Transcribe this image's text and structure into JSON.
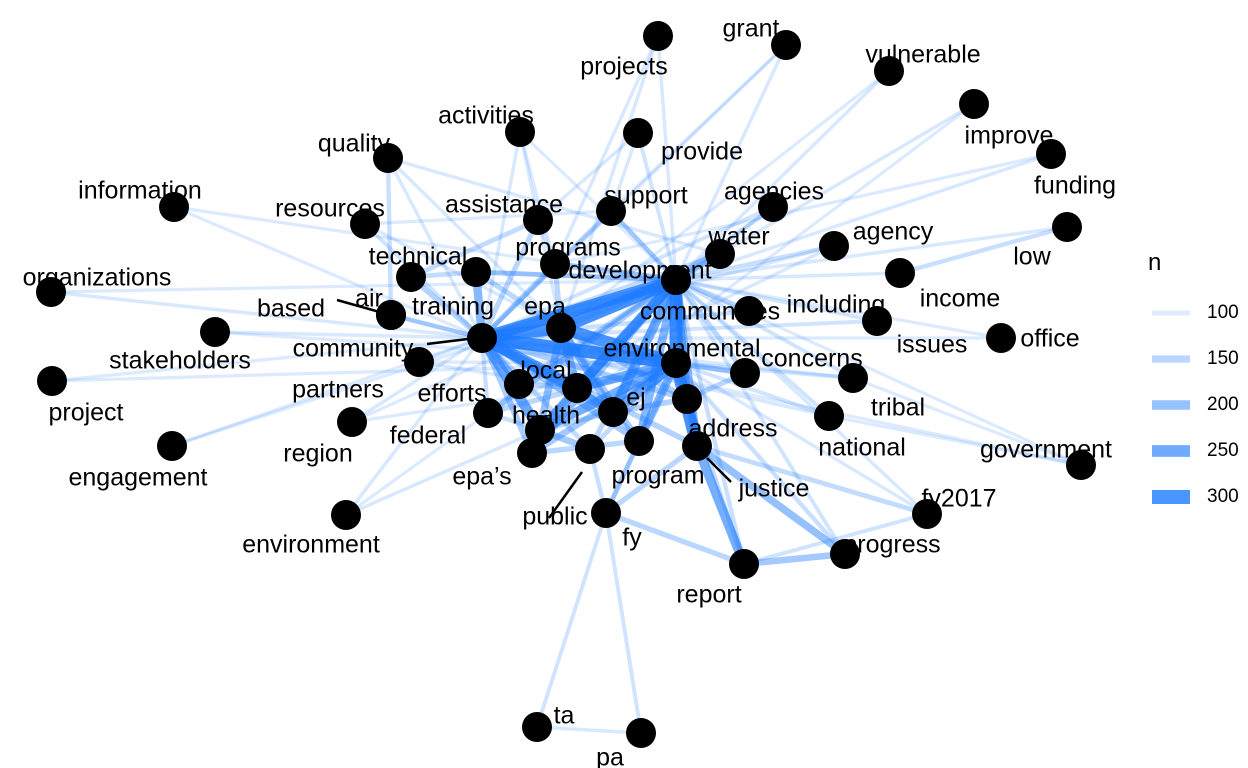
{
  "chart": {
    "type": "network",
    "edge_color": "#1e7bff",
    "node_color": "#000000",
    "background": "#ffffff"
  },
  "legend": {
    "title": "n",
    "items": [
      {
        "label": "100",
        "value": 100
      },
      {
        "label": "150",
        "value": 150
      },
      {
        "label": "200",
        "value": 200
      },
      {
        "label": "250",
        "value": 250
      },
      {
        "label": "300",
        "value": 300
      }
    ]
  },
  "nodes": [
    {
      "id": "projects",
      "label": "projects"
    },
    {
      "id": "grant",
      "label": "grant"
    },
    {
      "id": "vulnerable",
      "label": "vulnerable"
    },
    {
      "id": "improve",
      "label": "improve"
    },
    {
      "id": "activities",
      "label": "activities"
    },
    {
      "id": "provide",
      "label": "provide"
    },
    {
      "id": "quality",
      "label": "quality"
    },
    {
      "id": "funding",
      "label": "funding"
    },
    {
      "id": "information",
      "label": "information"
    },
    {
      "id": "agencies",
      "label": "agencies"
    },
    {
      "id": "assistance",
      "label": "assistance"
    },
    {
      "id": "support",
      "label": "support"
    },
    {
      "id": "resources",
      "label": "resources"
    },
    {
      "id": "low",
      "label": "low"
    },
    {
      "id": "agency",
      "label": "agency"
    },
    {
      "id": "water",
      "label": "water"
    },
    {
      "id": "technical",
      "label": "technical"
    },
    {
      "id": "programs",
      "label": "programs"
    },
    {
      "id": "development",
      "label": "development"
    },
    {
      "id": "organizations",
      "label": "organizations"
    },
    {
      "id": "income",
      "label": "income"
    },
    {
      "id": "air",
      "label": "air"
    },
    {
      "id": "based",
      "label": "based"
    },
    {
      "id": "training",
      "label": "training"
    },
    {
      "id": "epa",
      "label": "epa"
    },
    {
      "id": "communities",
      "label": "communities"
    },
    {
      "id": "including",
      "label": "including"
    },
    {
      "id": "office",
      "label": "office"
    },
    {
      "id": "issues",
      "label": "issues"
    },
    {
      "id": "community",
      "label": "community"
    },
    {
      "id": "environmental",
      "label": "environmental"
    },
    {
      "id": "stakeholders",
      "label": "stakeholders"
    },
    {
      "id": "concerns",
      "label": "concerns"
    },
    {
      "id": "local",
      "label": "local"
    },
    {
      "id": "partners",
      "label": "partners"
    },
    {
      "id": "efforts",
      "label": "efforts"
    },
    {
      "id": "project",
      "label": "project"
    },
    {
      "id": "tribal",
      "label": "tribal"
    },
    {
      "id": "ej",
      "label": "ej"
    },
    {
      "id": "health",
      "label": "health"
    },
    {
      "id": "federal",
      "label": "federal"
    },
    {
      "id": "address",
      "label": "address"
    },
    {
      "id": "region",
      "label": "region"
    },
    {
      "id": "national",
      "label": "national"
    },
    {
      "id": "government",
      "label": "government"
    },
    {
      "id": "engagement",
      "label": "engagement"
    },
    {
      "id": "epas",
      "label": "epa’s"
    },
    {
      "id": "program",
      "label": "program"
    },
    {
      "id": "justice",
      "label": "justice"
    },
    {
      "id": "fy2017",
      "label": "fy2017"
    },
    {
      "id": "public",
      "label": "public"
    },
    {
      "id": "fy",
      "label": "fy"
    },
    {
      "id": "environment",
      "label": "environment"
    },
    {
      "id": "progress",
      "label": "progress"
    },
    {
      "id": "report",
      "label": "report"
    },
    {
      "id": "ta",
      "label": "ta"
    },
    {
      "id": "pa",
      "label": "pa"
    }
  ],
  "edges": [
    [
      "community",
      "environmental",
      320
    ],
    [
      "community",
      "epa",
      300
    ],
    [
      "community",
      "communities",
      300
    ],
    [
      "community",
      "local",
      280
    ],
    [
      "community",
      "health",
      260
    ],
    [
      "community",
      "ej",
      240
    ],
    [
      "community",
      "training",
      220
    ],
    [
      "community",
      "efforts",
      200
    ],
    [
      "community",
      "development",
      200
    ],
    [
      "community",
      "program",
      180
    ],
    [
      "community",
      "epas",
      170
    ],
    [
      "community",
      "address",
      170
    ],
    [
      "community",
      "justice",
      160
    ],
    [
      "community",
      "technical",
      160
    ],
    [
      "community",
      "assistance",
      150
    ],
    [
      "community",
      "programs",
      150
    ],
    [
      "community",
      "support",
      140
    ],
    [
      "community",
      "water",
      140
    ],
    [
      "community",
      "public",
      140
    ],
    [
      "community",
      "federal",
      130
    ],
    [
      "community",
      "air",
      130
    ],
    [
      "community",
      "based",
      130
    ],
    [
      "community",
      "agencies",
      120
    ],
    [
      "community",
      "agency",
      110
    ],
    [
      "community",
      "stakeholders",
      110
    ],
    [
      "community",
      "organizations",
      110
    ],
    [
      "community",
      "information",
      105
    ],
    [
      "community",
      "partners",
      110
    ],
    [
      "community",
      "region",
      110
    ],
    [
      "community",
      "engagement",
      105
    ],
    [
      "community",
      "project",
      105
    ],
    [
      "community",
      "resources",
      120
    ],
    [
      "community",
      "quality",
      110
    ],
    [
      "community",
      "activities",
      110
    ],
    [
      "community",
      "environment",
      110
    ],
    [
      "community",
      "including",
      130
    ],
    [
      "community",
      "concerns",
      130
    ],
    [
      "community",
      "issues",
      120
    ],
    [
      "communities",
      "environmental",
      320
    ],
    [
      "communities",
      "epa",
      310
    ],
    [
      "communities",
      "local",
      260
    ],
    [
      "communities",
      "health",
      240
    ],
    [
      "communities",
      "ej",
      240
    ],
    [
      "communities",
      "development",
      240
    ],
    [
      "communities",
      "program",
      220
    ],
    [
      "communities",
      "address",
      220
    ],
    [
      "communities",
      "justice",
      220
    ],
    [
      "communities",
      "epas",
      180
    ],
    [
      "communities",
      "federal",
      170
    ],
    [
      "communities",
      "water",
      170
    ],
    [
      "communities",
      "programs",
      170
    ],
    [
      "communities",
      "including",
      150
    ],
    [
      "communities",
      "concerns",
      150
    ],
    [
      "communities",
      "agency",
      130
    ],
    [
      "communities",
      "agencies",
      130
    ],
    [
      "communities",
      "support",
      130
    ],
    [
      "communities",
      "provide",
      120
    ],
    [
      "communities",
      "projects",
      110
    ],
    [
      "communities",
      "grant",
      110
    ],
    [
      "communities",
      "vulnerable",
      110
    ],
    [
      "communities",
      "improve",
      110
    ],
    [
      "communities",
      "funding",
      110
    ],
    [
      "communities",
      "low",
      110
    ],
    [
      "communities",
      "income",
      110
    ],
    [
      "communities",
      "issues",
      120
    ],
    [
      "communities",
      "office",
      105
    ],
    [
      "communities",
      "tribal",
      120
    ],
    [
      "communities",
      "national",
      120
    ],
    [
      "communities",
      "government",
      105
    ],
    [
      "communities",
      "fy2017",
      110
    ],
    [
      "communities",
      "progress",
      120
    ],
    [
      "communities",
      "report",
      130
    ],
    [
      "communities",
      "public",
      150
    ],
    [
      "communities",
      "efforts",
      160
    ],
    [
      "communities",
      "training",
      140
    ],
    [
      "environmental",
      "justice",
      310
    ],
    [
      "environmental",
      "epa",
      300
    ],
    [
      "environmental",
      "ej",
      260
    ],
    [
      "environmental",
      "local",
      240
    ],
    [
      "environmental",
      "health",
      240
    ],
    [
      "environmental",
      "address",
      230
    ],
    [
      "environmental",
      "program",
      220
    ],
    [
      "environmental",
      "epas",
      180
    ],
    [
      "environmental",
      "concerns",
      160
    ],
    [
      "environmental",
      "federal",
      150
    ],
    [
      "environmental",
      "fy",
      140
    ],
    [
      "environmental",
      "public",
      140
    ],
    [
      "environmental",
      "report",
      140
    ],
    [
      "environmental",
      "progress",
      130
    ],
    [
      "environmental",
      "national",
      120
    ],
    [
      "environmental",
      "tribal",
      120
    ],
    [
      "environmental",
      "fy2017",
      110
    ],
    [
      "epa",
      "local",
      220
    ],
    [
      "epa",
      "ej",
      200
    ],
    [
      "epa",
      "health",
      200
    ],
    [
      "epa",
      "program",
      180
    ],
    [
      "epa",
      "address",
      170
    ],
    [
      "epa",
      "training",
      150
    ],
    [
      "epa",
      "programs",
      150
    ],
    [
      "epa",
      "development",
      150
    ],
    [
      "justice",
      "report",
      240
    ],
    [
      "justice",
      "progress",
      200
    ],
    [
      "justice",
      "fy",
      150
    ],
    [
      "justice",
      "fy2017",
      140
    ],
    [
      "justice",
      "address",
      170
    ],
    [
      "report",
      "progress",
      180
    ],
    [
      "report",
      "fy",
      150
    ],
    [
      "report",
      "fy2017",
      120
    ],
    [
      "fy",
      "ta",
      120
    ],
    [
      "fy",
      "pa",
      120
    ],
    [
      "fy",
      "public",
      130
    ],
    [
      "fy",
      "program",
      140
    ],
    [
      "ta",
      "pa",
      110
    ],
    [
      "local",
      "health",
      170
    ],
    [
      "local",
      "ej",
      170
    ],
    [
      "health",
      "public",
      180
    ],
    [
      "health",
      "ej",
      150
    ],
    [
      "epas",
      "program",
      150
    ],
    [
      "program",
      "ej",
      150
    ],
    [
      "address",
      "ej",
      160
    ],
    [
      "address",
      "concerns",
      150
    ],
    [
      "efforts",
      "local",
      150
    ],
    [
      "federal",
      "health",
      130
    ],
    [
      "water",
      "development",
      130
    ],
    [
      "low",
      "income",
      130
    ],
    [
      "air",
      "quality",
      130
    ],
    [
      "technical",
      "assistance",
      140
    ],
    [
      "technical",
      "training",
      140
    ],
    [
      "training",
      "development",
      140
    ],
    [
      "programs",
      "assistance",
      120
    ],
    [
      "development",
      "support",
      130
    ],
    [
      "epa",
      "resources",
      110
    ],
    [
      "epa",
      "quality",
      110
    ],
    [
      "epa",
      "activities",
      110
    ],
    [
      "epa",
      "projects",
      110
    ],
    [
      "programs",
      "projects",
      110
    ],
    [
      "grant",
      "programs",
      105
    ],
    [
      "community",
      "grant",
      105
    ],
    [
      "community",
      "office",
      105
    ],
    [
      "community",
      "tribal",
      110
    ],
    [
      "community",
      "national",
      110
    ],
    [
      "community",
      "government",
      105
    ],
    [
      "environment",
      "health",
      110
    ],
    [
      "environment",
      "federal",
      105
    ],
    [
      "region",
      "epa",
      105
    ],
    [
      "region",
      "local",
      105
    ],
    [
      "partners",
      "local",
      110
    ],
    [
      "partners",
      "environmental",
      105
    ],
    [
      "stakeholders",
      "environmental",
      105
    ],
    [
      "organizations",
      "communities",
      105
    ],
    [
      "information",
      "communities",
      105
    ],
    [
      "engagement",
      "communities",
      105
    ],
    [
      "project",
      "environmental",
      105
    ],
    [
      "national",
      "government",
      105
    ],
    [
      "tribal",
      "government",
      105
    ],
    [
      "quality",
      "water",
      110
    ],
    [
      "activities",
      "programs",
      105
    ],
    [
      "activities",
      "development",
      105
    ],
    [
      "provide",
      "assistance",
      110
    ],
    [
      "provide",
      "support",
      110
    ],
    [
      "agencies",
      "federal",
      110
    ],
    [
      "agency",
      "federal",
      110
    ],
    [
      "vulnerable",
      "epa",
      105
    ],
    [
      "improve",
      "health",
      105
    ],
    [
      "funding",
      "programs",
      105
    ],
    [
      "resources",
      "support",
      105
    ]
  ]
}
